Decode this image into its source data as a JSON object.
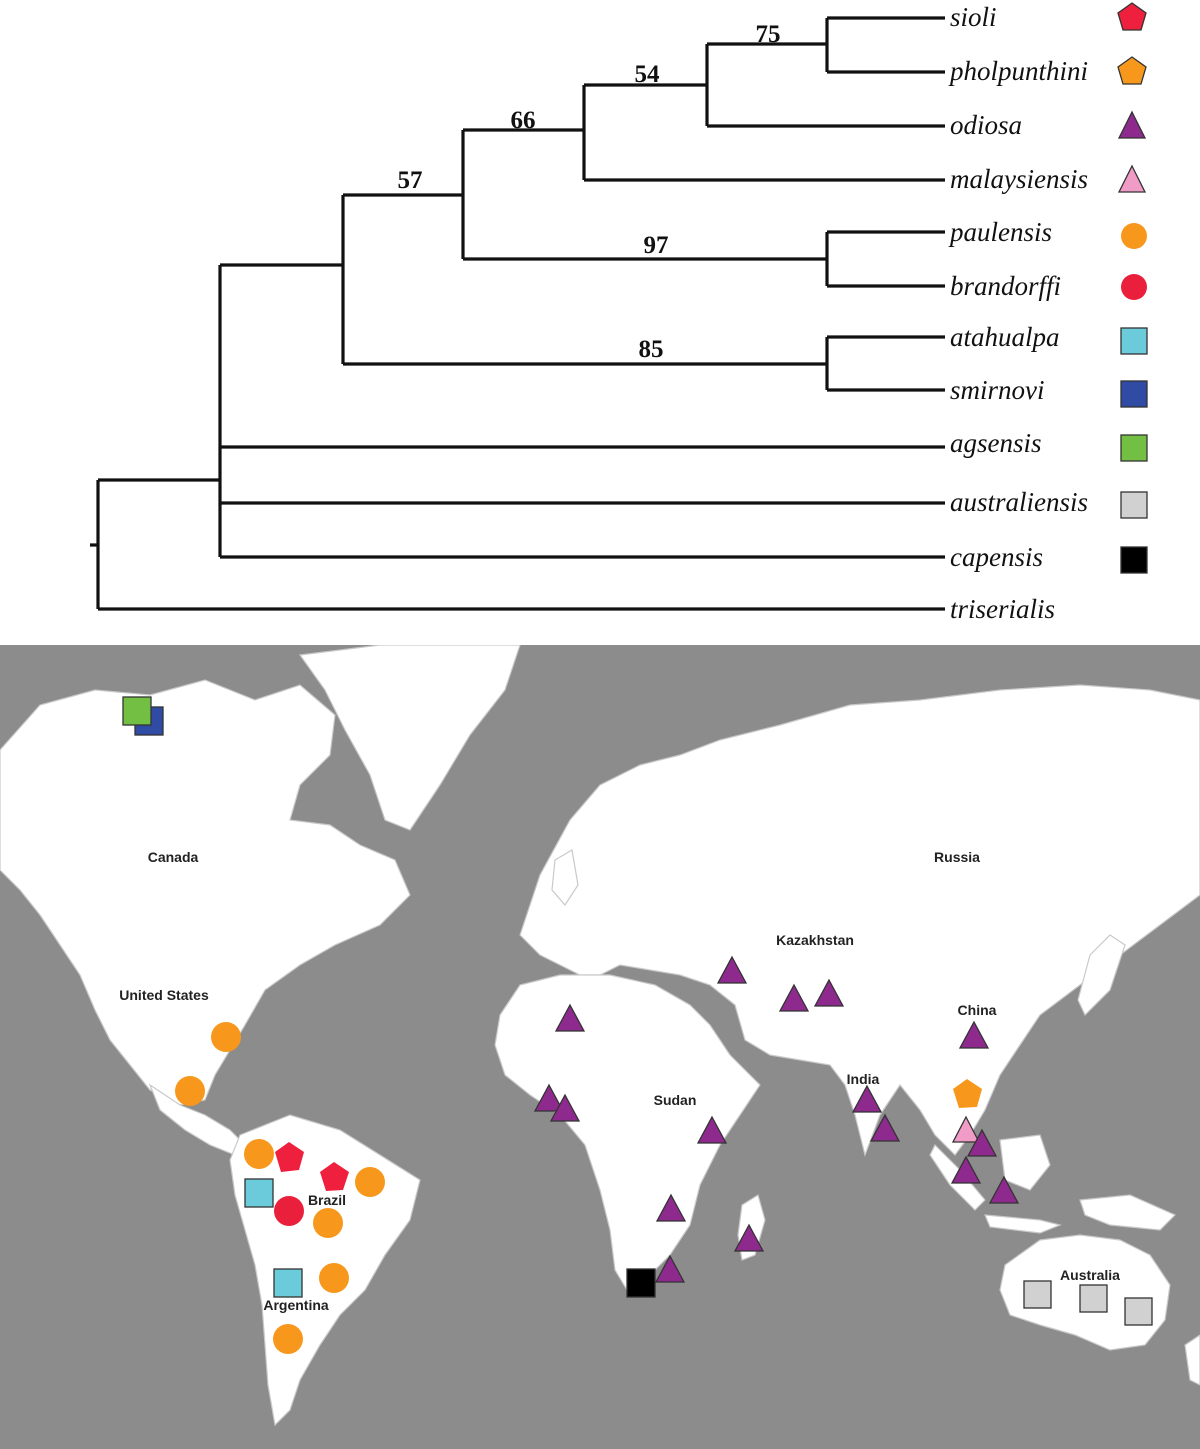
{
  "phylogeny": {
    "taxa": [
      {
        "name": "sioli",
        "color": "#ef1f3e",
        "shape": "pentagon"
      },
      {
        "name": "pholpunthini",
        "color": "#f7981d",
        "shape": "pentagon"
      },
      {
        "name": "odiosa",
        "color": "#8e2a8e",
        "shape": "triangle"
      },
      {
        "name": "malaysiensis",
        "color": "#f19cc6",
        "shape": "triangle"
      },
      {
        "name": "paulensis",
        "color": "#f7981d",
        "shape": "circle"
      },
      {
        "name": "brandorffi",
        "color": "#ea1f3c",
        "shape": "circle"
      },
      {
        "name": "atahualpa",
        "color": "#6ccbdb",
        "shape": "square"
      },
      {
        "name": "smirnovi",
        "color": "#2f4ba3",
        "shape": "square"
      },
      {
        "name": "agsensis",
        "color": "#73bf44",
        "shape": "square"
      },
      {
        "name": "australiensis",
        "color": "#d1d1d1",
        "shape": "square"
      },
      {
        "name": "capensis",
        "color": "#000000",
        "shape": "square"
      },
      {
        "name": "triserialis",
        "color": "",
        "shape": "none"
      }
    ],
    "support_values": [
      "75",
      "54",
      "66",
      "57",
      "97",
      "85"
    ]
  },
  "map": {
    "country_labels": [
      "Canada",
      "United States",
      "Brazil",
      "Argentina",
      "Russia",
      "Kazakhstan",
      "China",
      "India",
      "Sudan",
      "Australia"
    ],
    "colors": {
      "ocean": "#8c8c8c",
      "land": "#ffffff",
      "border": "#c9c9c9"
    }
  }
}
